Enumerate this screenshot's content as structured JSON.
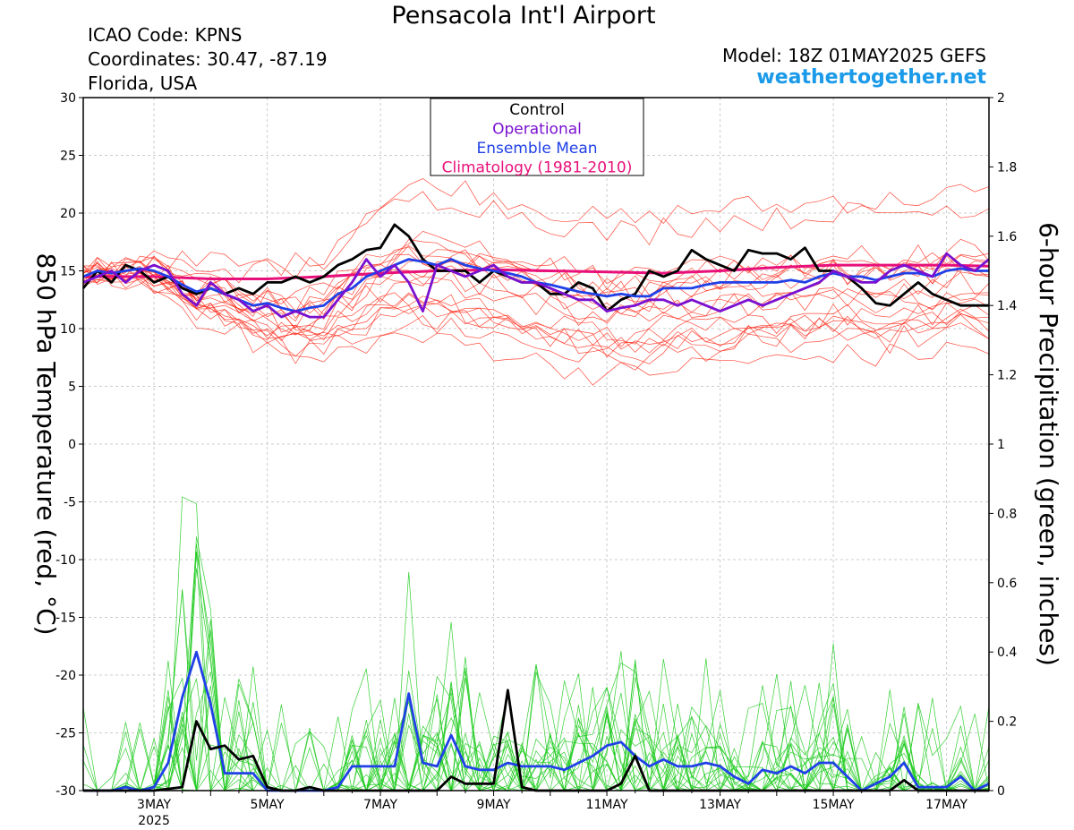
{
  "header": {
    "title": "Pensacola Int'l Airport",
    "icao": "ICAO Code: KPNS",
    "coords": "Coordinates: 30.47, -87.19",
    "region": "Florida, USA",
    "model": "Model: 18Z 01MAY2025 GEFS",
    "site": "weathertogether.net"
  },
  "colors": {
    "control": "#000000",
    "operational": "#7a10d0",
    "ensemble_mean": "#2040e8",
    "climatology": "#e8107a",
    "members_temp": "#ff2a1a",
    "members_precip": "#1ecb1e"
  },
  "chart_data": {
    "type": "line",
    "left_axis": {
      "label": "850 hPa Temperature (red, °C)",
      "range": [
        -30,
        30
      ],
      "ticks": [
        -30,
        -25,
        -20,
        -15,
        -10,
        -5,
        0,
        5,
        10,
        15,
        20,
        25,
        30
      ]
    },
    "right_axis": {
      "label": "6-hour Precipitation (green, inches)",
      "range": [
        0,
        2
      ],
      "ticks": [
        "0",
        "0.2",
        "0.4",
        "0.6",
        "0.8",
        "1",
        "1.2",
        "1.4",
        "1.6",
        "1.8",
        "2"
      ]
    },
    "x_axis": {
      "range": [
        1.75,
        17.75
      ],
      "ticks": [
        {
          "day": 3,
          "label": "3MAY",
          "sub": "2025"
        },
        {
          "day": 5,
          "label": "5MAY"
        },
        {
          "day": 7,
          "label": "7MAY"
        },
        {
          "day": 9,
          "label": "9MAY"
        },
        {
          "day": 11,
          "label": "11MAY"
        },
        {
          "day": 13,
          "label": "13MAY"
        },
        {
          "day": 15,
          "label": "15MAY"
        },
        {
          "day": 17,
          "label": "17MAY"
        }
      ]
    },
    "legend": {
      "placement": "top-center",
      "entries": [
        {
          "name": "Control",
          "color": "#000000"
        },
        {
          "name": "Operational",
          "color": "#7a10d0"
        },
        {
          "name": "Ensemble Mean",
          "color": "#2040e8"
        },
        {
          "name": "Climatology (1981-2010)",
          "color": "#e8107a"
        }
      ]
    },
    "temperature": {
      "control": [
        [
          1.75,
          13.5
        ],
        [
          2,
          15
        ],
        [
          2.25,
          14
        ],
        [
          2.5,
          15.5
        ],
        [
          2.75,
          15
        ],
        [
          3,
          14
        ],
        [
          3.25,
          14.5
        ],
        [
          3.5,
          13.5
        ],
        [
          3.75,
          13
        ],
        [
          4,
          13.5
        ],
        [
          4.25,
          13
        ],
        [
          4.5,
          13.5
        ],
        [
          4.75,
          13
        ],
        [
          5,
          14
        ],
        [
          5.25,
          14
        ],
        [
          5.5,
          14.5
        ],
        [
          5.75,
          14
        ],
        [
          6,
          14.5
        ],
        [
          6.25,
          15.5
        ],
        [
          6.5,
          16
        ],
        [
          6.75,
          16.8
        ],
        [
          7,
          17
        ],
        [
          7.25,
          19
        ],
        [
          7.5,
          18
        ],
        [
          7.75,
          16
        ],
        [
          8,
          15
        ],
        [
          8.25,
          15
        ],
        [
          8.5,
          15
        ],
        [
          8.75,
          14
        ],
        [
          9,
          15
        ],
        [
          9.25,
          14.5
        ],
        [
          9.5,
          14
        ],
        [
          9.75,
          14
        ],
        [
          10,
          13
        ],
        [
          10.25,
          13
        ],
        [
          10.5,
          14
        ],
        [
          10.75,
          13.5
        ],
        [
          11,
          11.5
        ],
        [
          11.25,
          12.5
        ],
        [
          11.5,
          13
        ],
        [
          11.75,
          15
        ],
        [
          12,
          14.5
        ],
        [
          12.25,
          15
        ],
        [
          12.5,
          16.8
        ],
        [
          12.75,
          16
        ],
        [
          13,
          15.5
        ],
        [
          13.25,
          15
        ],
        [
          13.5,
          16.8
        ],
        [
          13.75,
          16.5
        ],
        [
          14,
          16.5
        ],
        [
          14.25,
          16
        ],
        [
          14.5,
          17
        ],
        [
          14.75,
          15
        ],
        [
          15,
          15
        ],
        [
          15.25,
          14.5
        ],
        [
          15.5,
          13.5
        ],
        [
          15.75,
          12.2
        ],
        [
          16,
          12
        ],
        [
          16.25,
          13
        ],
        [
          16.5,
          14
        ],
        [
          16.75,
          13
        ],
        [
          17,
          12.5
        ],
        [
          17.25,
          12
        ],
        [
          17.5,
          12
        ],
        [
          17.75,
          12
        ]
      ],
      "operational": [
        [
          1.75,
          14
        ],
        [
          2,
          14.5
        ],
        [
          2.25,
          15
        ],
        [
          2.5,
          14
        ],
        [
          2.75,
          15
        ],
        [
          3,
          15.5
        ],
        [
          3.25,
          15
        ],
        [
          3.5,
          13
        ],
        [
          3.75,
          12
        ],
        [
          4,
          14
        ],
        [
          4.25,
          13
        ],
        [
          4.5,
          12.5
        ],
        [
          4.75,
          11.5
        ],
        [
          5,
          12
        ],
        [
          5.25,
          11
        ],
        [
          5.5,
          11.5
        ],
        [
          5.75,
          11
        ],
        [
          6,
          11
        ],
        [
          6.25,
          12.5
        ],
        [
          6.5,
          14
        ],
        [
          6.75,
          16
        ],
        [
          7,
          14.5
        ],
        [
          7.25,
          15.5
        ],
        [
          7.5,
          14
        ],
        [
          7.75,
          11.5
        ],
        [
          8,
          15.5
        ],
        [
          8.25,
          15
        ],
        [
          8.5,
          14.5
        ],
        [
          8.75,
          15
        ],
        [
          9,
          15.5
        ],
        [
          9.25,
          14.5
        ],
        [
          9.5,
          14
        ],
        [
          9.75,
          14
        ],
        [
          10,
          13.5
        ],
        [
          10.25,
          13
        ],
        [
          10.5,
          12.5
        ],
        [
          10.75,
          12.5
        ],
        [
          11,
          11.5
        ],
        [
          11.25,
          11.8
        ],
        [
          11.5,
          12
        ],
        [
          11.75,
          12.5
        ],
        [
          12,
          12.5
        ],
        [
          12.25,
          12
        ],
        [
          12.5,
          12.5
        ],
        [
          12.75,
          12
        ],
        [
          13,
          11.5
        ],
        [
          13.25,
          12
        ],
        [
          13.5,
          12.5
        ],
        [
          13.75,
          12
        ],
        [
          14,
          12.5
        ],
        [
          14.25,
          13
        ],
        [
          14.5,
          13.5
        ],
        [
          14.75,
          14
        ],
        [
          15,
          15
        ],
        [
          15.25,
          14.5
        ],
        [
          15.5,
          14
        ],
        [
          15.75,
          14
        ],
        [
          16,
          15
        ],
        [
          16.25,
          15.5
        ],
        [
          16.5,
          15
        ],
        [
          16.75,
          14.5
        ],
        [
          17,
          16.5
        ],
        [
          17.25,
          15.5
        ],
        [
          17.5,
          15
        ],
        [
          17.75,
          16
        ]
      ],
      "ensemble_mean": [
        [
          1.75,
          14.5
        ],
        [
          2,
          15
        ],
        [
          2.25,
          14.8
        ],
        [
          2.5,
          15
        ],
        [
          2.75,
          15.2
        ],
        [
          3,
          15
        ],
        [
          3.25,
          14.5
        ],
        [
          3.5,
          13.8
        ],
        [
          3.75,
          13.2
        ],
        [
          4,
          13.5
        ],
        [
          4.25,
          13
        ],
        [
          4.5,
          12.5
        ],
        [
          4.75,
          12
        ],
        [
          5,
          12.2
        ],
        [
          5.25,
          11.8
        ],
        [
          5.5,
          11.5
        ],
        [
          5.75,
          11.8
        ],
        [
          6,
          12
        ],
        [
          6.25,
          13
        ],
        [
          6.5,
          13.5
        ],
        [
          6.75,
          14.5
        ],
        [
          7,
          15
        ],
        [
          7.25,
          15.5
        ],
        [
          7.5,
          16
        ],
        [
          7.75,
          15.8
        ],
        [
          8,
          15.5
        ],
        [
          8.25,
          16
        ],
        [
          8.5,
          15.5
        ],
        [
          8.75,
          15.2
        ],
        [
          9,
          15
        ],
        [
          9.25,
          14.8
        ],
        [
          9.5,
          14.5
        ],
        [
          9.75,
          14
        ],
        [
          10,
          13.8
        ],
        [
          10.25,
          13.5
        ],
        [
          10.5,
          13.2
        ],
        [
          10.75,
          13
        ],
        [
          11,
          12.8
        ],
        [
          11.25,
          13
        ],
        [
          11.5,
          12.8
        ],
        [
          11.75,
          12.8
        ],
        [
          12,
          13.5
        ],
        [
          12.25,
          13.5
        ],
        [
          12.5,
          13.5
        ],
        [
          12.75,
          13.8
        ],
        [
          13,
          14
        ],
        [
          13.25,
          14
        ],
        [
          13.5,
          14
        ],
        [
          13.75,
          14
        ],
        [
          14,
          14
        ],
        [
          14.25,
          14.2
        ],
        [
          14.5,
          14
        ],
        [
          14.75,
          14.5
        ],
        [
          15,
          14.8
        ],
        [
          15.25,
          14.5
        ],
        [
          15.5,
          14.5
        ],
        [
          15.75,
          14.2
        ],
        [
          16,
          14.5
        ],
        [
          16.25,
          14.8
        ],
        [
          16.5,
          14.8
        ],
        [
          16.75,
          14.5
        ],
        [
          17,
          15
        ],
        [
          17.25,
          15.2
        ],
        [
          17.5,
          15
        ],
        [
          17.75,
          15
        ]
      ],
      "climatology": [
        [
          1.75,
          14.5
        ],
        [
          2.5,
          14.5
        ],
        [
          3,
          14.5
        ],
        [
          4,
          14.3
        ],
        [
          5,
          14.3
        ],
        [
          6,
          14.5
        ],
        [
          7,
          14.8
        ],
        [
          8,
          15
        ],
        [
          9,
          15.1
        ],
        [
          10,
          15
        ],
        [
          11,
          14.9
        ],
        [
          12,
          14.8
        ],
        [
          13,
          15
        ],
        [
          14,
          15.3
        ],
        [
          15,
          15.5
        ],
        [
          16,
          15.5
        ],
        [
          17,
          15.5
        ],
        [
          17.75,
          15.4
        ]
      ]
    },
    "precipitation": {
      "control": [
        [
          1.75,
          0
        ],
        [
          2.25,
          0
        ],
        [
          2.75,
          0
        ],
        [
          3,
          0
        ],
        [
          3.5,
          0.01
        ],
        [
          3.75,
          0.2
        ],
        [
          4,
          0.12
        ],
        [
          4.25,
          0.13
        ],
        [
          4.5,
          0.09
        ],
        [
          4.75,
          0.1
        ],
        [
          5,
          0.01
        ],
        [
          5.25,
          0
        ],
        [
          5.5,
          0
        ],
        [
          5.75,
          0.01
        ],
        [
          6,
          0
        ],
        [
          6.5,
          0
        ],
        [
          7,
          0
        ],
        [
          7.5,
          0
        ],
        [
          8,
          0
        ],
        [
          8.25,
          0.04
        ],
        [
          8.5,
          0.02
        ],
        [
          8.75,
          0.02
        ],
        [
          9,
          0.02
        ],
        [
          9.25,
          0.29
        ],
        [
          9.5,
          0.01
        ],
        [
          9.75,
          0
        ],
        [
          10,
          0
        ],
        [
          10.5,
          0
        ],
        [
          11,
          0
        ],
        [
          11.25,
          0.02
        ],
        [
          11.5,
          0.1
        ],
        [
          11.75,
          0
        ],
        [
          12,
          0
        ],
        [
          13,
          0
        ],
        [
          14,
          0
        ],
        [
          15,
          0
        ],
        [
          15.5,
          0
        ],
        [
          16,
          0
        ],
        [
          16.25,
          0.03
        ],
        [
          16.5,
          0
        ],
        [
          17,
          0
        ],
        [
          17.5,
          0
        ],
        [
          17.75,
          0
        ]
      ],
      "ensemble_mean": [
        [
          1.75,
          0
        ],
        [
          2,
          0
        ],
        [
          2.25,
          0
        ],
        [
          2.5,
          0.01
        ],
        [
          2.75,
          0
        ],
        [
          3,
          0.01
        ],
        [
          3.25,
          0.08
        ],
        [
          3.5,
          0.27
        ],
        [
          3.75,
          0.4
        ],
        [
          4,
          0.25
        ],
        [
          4.25,
          0.05
        ],
        [
          4.5,
          0.05
        ],
        [
          4.75,
          0.05
        ],
        [
          5,
          0
        ],
        [
          5.25,
          0
        ],
        [
          5.5,
          0
        ],
        [
          5.75,
          0
        ],
        [
          6,
          0
        ],
        [
          6.25,
          0.01
        ],
        [
          6.5,
          0.07
        ],
        [
          6.75,
          0.07
        ],
        [
          7,
          0.07
        ],
        [
          7.25,
          0.07
        ],
        [
          7.5,
          0.28
        ],
        [
          7.75,
          0.08
        ],
        [
          8,
          0.07
        ],
        [
          8.25,
          0.16
        ],
        [
          8.5,
          0.07
        ],
        [
          8.75,
          0.06
        ],
        [
          9,
          0.06
        ],
        [
          9.25,
          0.08
        ],
        [
          9.5,
          0.07
        ],
        [
          9.75,
          0.07
        ],
        [
          10,
          0.07
        ],
        [
          10.25,
          0.06
        ],
        [
          10.5,
          0.08
        ],
        [
          10.75,
          0.1
        ],
        [
          11,
          0.13
        ],
        [
          11.25,
          0.14
        ],
        [
          11.5,
          0.1
        ],
        [
          11.75,
          0.07
        ],
        [
          12,
          0.09
        ],
        [
          12.25,
          0.07
        ],
        [
          12.5,
          0.07
        ],
        [
          12.75,
          0.08
        ],
        [
          13,
          0.07
        ],
        [
          13.25,
          0.04
        ],
        [
          13.5,
          0.02
        ],
        [
          13.75,
          0.06
        ],
        [
          14,
          0.05
        ],
        [
          14.25,
          0.07
        ],
        [
          14.5,
          0.05
        ],
        [
          14.75,
          0.08
        ],
        [
          15,
          0.08
        ],
        [
          15.25,
          0.04
        ],
        [
          15.5,
          0
        ],
        [
          15.75,
          0.02
        ],
        [
          16,
          0.04
        ],
        [
          16.25,
          0.08
        ],
        [
          16.5,
          0.01
        ],
        [
          16.75,
          0.01
        ],
        [
          17,
          0.01
        ],
        [
          17.25,
          0.04
        ],
        [
          17.5,
          0
        ],
        [
          17.75,
          0.02
        ]
      ]
    }
  }
}
